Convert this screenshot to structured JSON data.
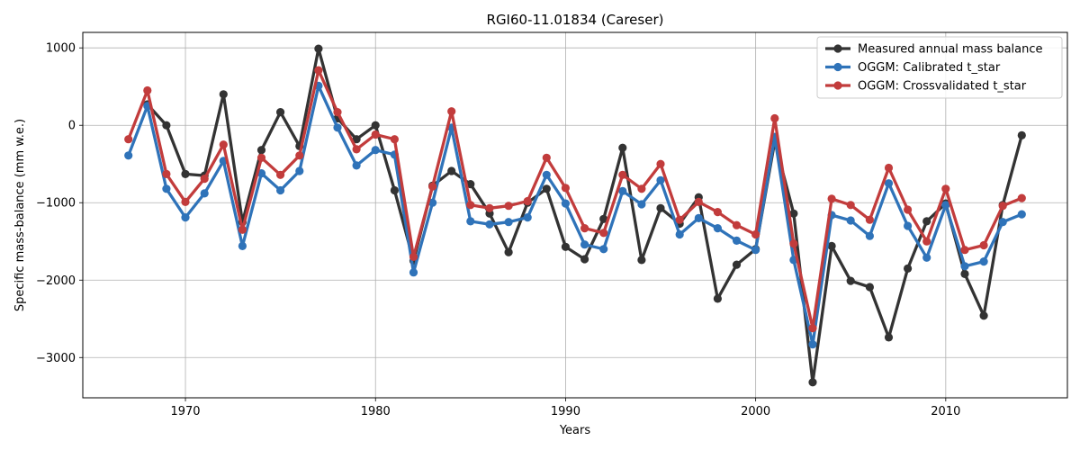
{
  "chart_data": {
    "type": "line",
    "title": "RGI60-11.01834 (Careser)",
    "xlabel": "Years",
    "ylabel": "Specific mass-balance (mm w.e.)",
    "xlim": [
      1964.6,
      2016.4
    ],
    "ylim": [
      -3520,
      1200
    ],
    "x_ticks": [
      1970,
      1980,
      1990,
      2000,
      2010
    ],
    "y_ticks": [
      1000,
      0,
      -1000,
      -2000,
      -3000
    ],
    "x_tick_labels": [
      "1970",
      "1980",
      "1990",
      "2000",
      "2010"
    ],
    "y_tick_labels": [
      "1000",
      "0",
      "−1000",
      "−2000",
      "−3000"
    ],
    "grid": true,
    "legend_position": "top-right",
    "x": [
      1967,
      1968,
      1969,
      1970,
      1971,
      1972,
      1973,
      1974,
      1975,
      1976,
      1977,
      1978,
      1979,
      1980,
      1981,
      1982,
      1983,
      1984,
      1985,
      1986,
      1987,
      1988,
      1989,
      1990,
      1991,
      1992,
      1993,
      1994,
      1995,
      1996,
      1997,
      1998,
      1999,
      2000,
      2001,
      2002,
      2003,
      2004,
      2005,
      2006,
      2007,
      2008,
      2009,
      2010,
      2011,
      2012,
      2013,
      2014
    ],
    "series": [
      {
        "name": "Measured annual mass balance",
        "color": "#333333",
        "start_index": 1,
        "values": [
          null,
          270,
          0,
          -630,
          -650,
          400,
          -1250,
          -320,
          170,
          -270,
          990,
          90,
          -180,
          0,
          -840,
          -1750,
          -780,
          -590,
          -760,
          -1140,
          -1640,
          -1000,
          -820,
          -1570,
          -1730,
          -1210,
          -290,
          -1740,
          -1070,
          -1270,
          -930,
          -2240,
          -1800,
          -1600,
          -210,
          -1140,
          -3320,
          -1560,
          -2010,
          -2090,
          -2740,
          -1850,
          -1240,
          -1010,
          -1920,
          -2460,
          -1030,
          -130
        ]
      },
      {
        "name": "OGGM: Calibrated t_star",
        "color": "#2f73b9",
        "start_index": 0,
        "values": [
          -390,
          250,
          -820,
          -1190,
          -880,
          -460,
          -1560,
          -620,
          -840,
          -590,
          510,
          -30,
          -520,
          -320,
          -380,
          -1900,
          -1000,
          -30,
          -1240,
          -1280,
          -1250,
          -1190,
          -640,
          -1010,
          -1540,
          -1600,
          -850,
          -1020,
          -710,
          -1410,
          -1200,
          -1330,
          -1490,
          -1610,
          -150,
          -1740,
          -2830,
          -1160,
          -1230,
          -1430,
          -750,
          -1300,
          -1710,
          -1030,
          -1820,
          -1760,
          -1250,
          -1150
        ]
      },
      {
        "name": "OGGM: Crossvalidated t_star",
        "color": "#c23c3c",
        "start_index": 0,
        "values": [
          -180,
          450,
          -630,
          -990,
          -690,
          -250,
          -1350,
          -420,
          -640,
          -390,
          710,
          170,
          -310,
          -120,
          -180,
          -1700,
          -790,
          180,
          -1030,
          -1070,
          -1040,
          -980,
          -420,
          -810,
          -1330,
          -1390,
          -640,
          -820,
          -500,
          -1220,
          -990,
          -1120,
          -1290,
          -1410,
          90,
          -1530,
          -2620,
          -950,
          -1030,
          -1220,
          -550,
          -1090,
          -1500,
          -820,
          -1610,
          -1550,
          -1040,
          -940
        ]
      }
    ]
  }
}
